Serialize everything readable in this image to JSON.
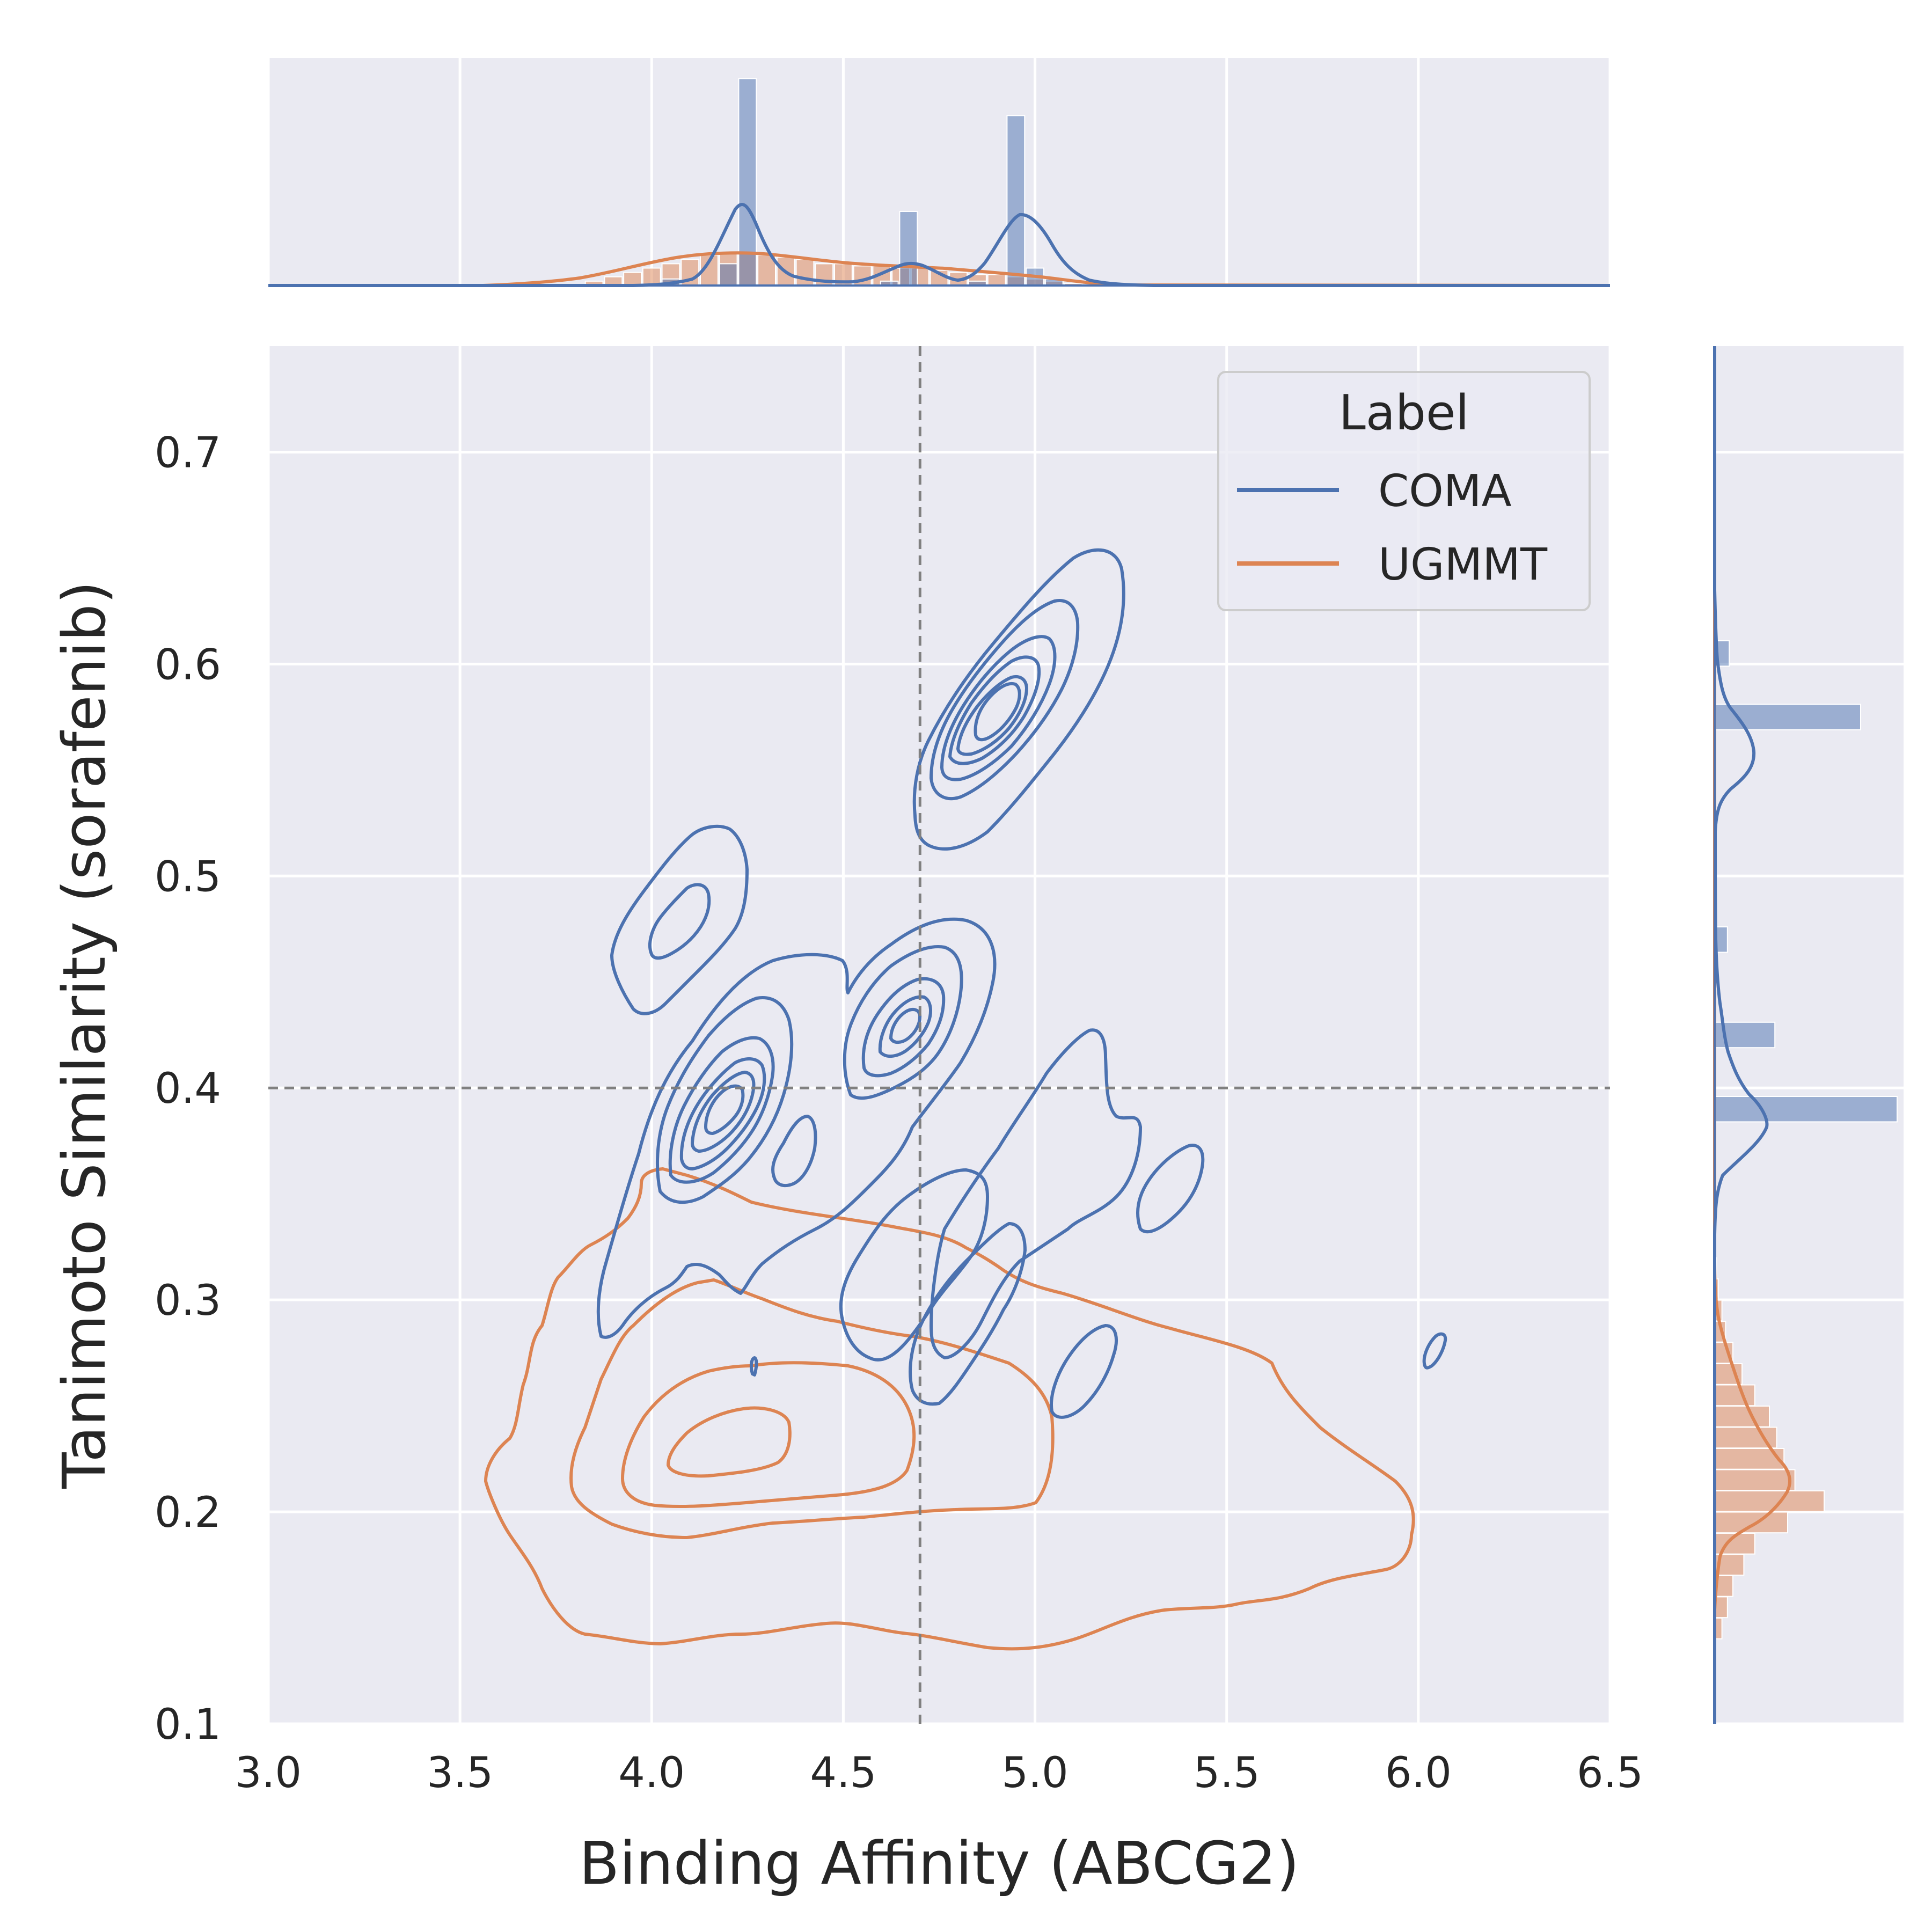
{
  "chart_data": {
    "type": "scatter",
    "subtype": "jointplot-kde-contour-with-marginal-histograms",
    "title": "",
    "xlabel": "Binding Affinity (ABCG2)",
    "ylabel": "Tanimoto Similarity (sorafenib)",
    "xlim": [
      3.0,
      6.5
    ],
    "ylim": [
      0.1,
      0.75
    ],
    "xticks": [
      "3.0",
      "3.5",
      "4.0",
      "4.5",
      "5.0",
      "5.5",
      "6.0",
      "6.5"
    ],
    "yticks": [
      "0.1",
      "0.2",
      "0.3",
      "0.4",
      "0.5",
      "0.6",
      "0.7"
    ],
    "grid": true,
    "reference_lines": {
      "x": 4.7,
      "y": 0.4,
      "style": "dashed",
      "color": "#808080"
    },
    "legend": {
      "title": "Label",
      "placement": "top-right"
    },
    "series": [
      {
        "name": "COMA",
        "color": "#4c72b0",
        "density_peaks": [
          {
            "x": 4.23,
            "y": 0.39
          },
          {
            "x": 4.95,
            "y": 0.575
          },
          {
            "x": 4.66,
            "y": 0.425
          },
          {
            "x": 4.1,
            "y": 0.475
          },
          {
            "x": 5.35,
            "y": 0.33
          },
          {
            "x": 4.85,
            "y": 0.3
          },
          {
            "x": 4.95,
            "y": 0.265
          },
          {
            "x": 6.07,
            "y": 0.27
          }
        ],
        "x_hist": {
          "bins": [
            4.05,
            4.2,
            4.25,
            4.62,
            4.67,
            4.85,
            4.95,
            5.0,
            5.05
          ],
          "values": [
            0.03,
            0.1,
            0.95,
            0.02,
            0.34,
            0.02,
            0.78,
            0.08,
            0.03
          ]
        },
        "y_hist": {
          "bins": [
            0.39,
            0.425,
            0.47,
            0.575,
            0.605
          ],
          "values": [
            1.0,
            0.33,
            0.07,
            0.8,
            0.08
          ]
        }
      },
      {
        "name": "UGMMT",
        "color": "#dd8452",
        "density_peaks": [
          {
            "x": 4.25,
            "y": 0.22
          }
        ],
        "x_hist": {
          "bins": [
            3.85,
            3.9,
            3.95,
            4.0,
            4.05,
            4.1,
            4.15,
            4.2,
            4.25,
            4.3,
            4.35,
            4.4,
            4.45,
            4.5,
            4.55,
            4.6,
            4.65,
            4.7,
            4.75,
            4.8,
            4.85,
            4.9,
            4.95,
            5.0,
            5.05,
            5.1
          ],
          "values": [
            0.02,
            0.04,
            0.06,
            0.08,
            0.1,
            0.12,
            0.14,
            0.15,
            0.15,
            0.14,
            0.13,
            0.12,
            0.1,
            0.1,
            0.09,
            0.09,
            0.08,
            0.08,
            0.07,
            0.06,
            0.05,
            0.05,
            0.04,
            0.03,
            0.02,
            0.01
          ]
        },
        "y_hist": {
          "bins": [
            0.145,
            0.155,
            0.165,
            0.175,
            0.185,
            0.195,
            0.205,
            0.215,
            0.225,
            0.235,
            0.245,
            0.255,
            0.265,
            0.275,
            0.285,
            0.295,
            0.305,
            0.315
          ],
          "values": [
            0.04,
            0.07,
            0.1,
            0.16,
            0.22,
            0.4,
            0.6,
            0.44,
            0.38,
            0.34,
            0.3,
            0.22,
            0.15,
            0.1,
            0.06,
            0.04,
            0.02,
            0.01
          ]
        }
      }
    ]
  }
}
